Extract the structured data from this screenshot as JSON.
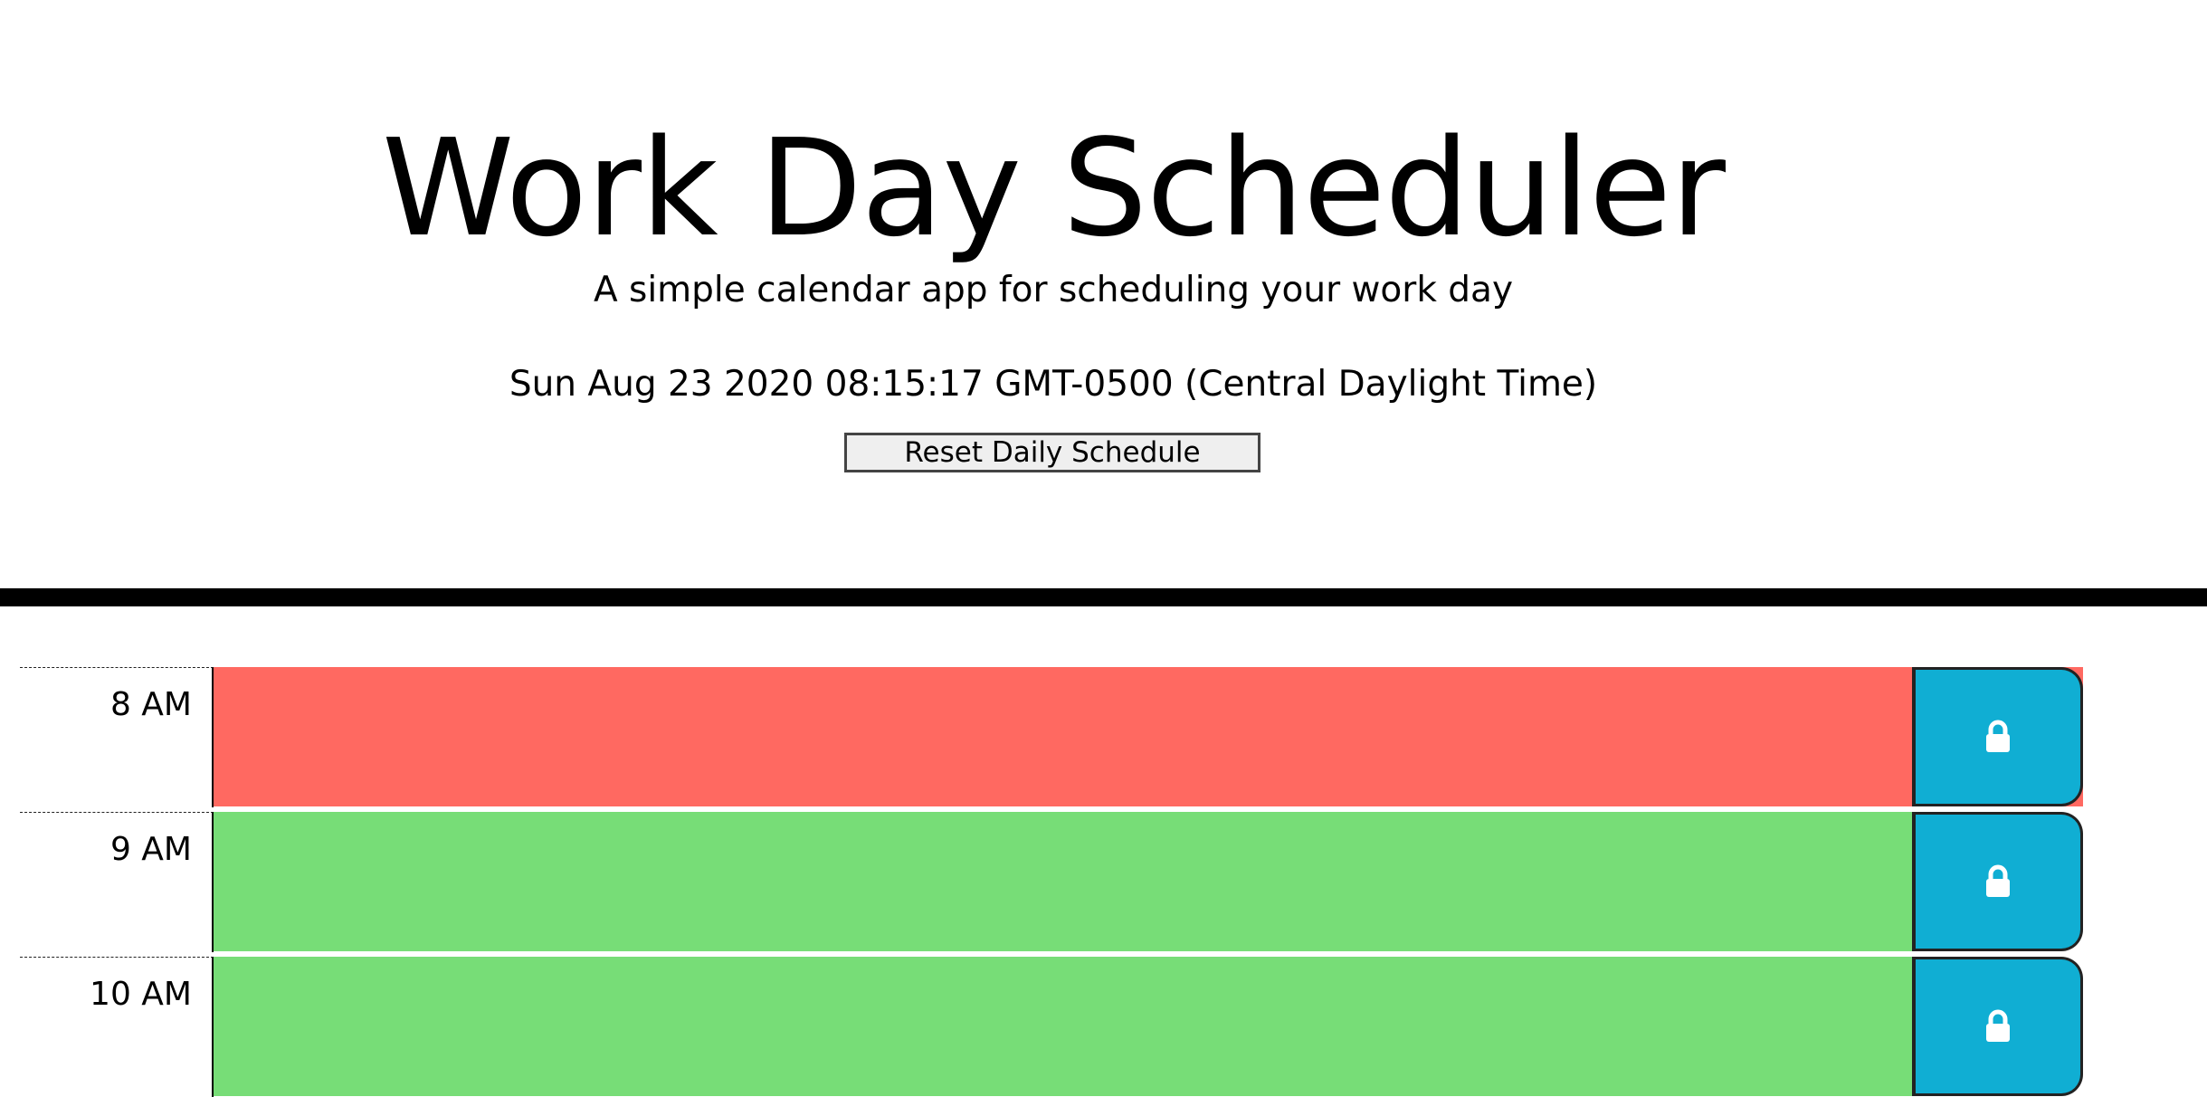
{
  "header": {
    "title": "Work Day Scheduler",
    "lead": "A simple calendar app for scheduling your work day",
    "current_day": "Sun Aug 23 2020 08:15:17 GMT-0500 (Central Daylight Time)",
    "reset_label": "Reset Daily Schedule"
  },
  "colors": {
    "past": "#ff6961",
    "future": "#77dd77",
    "save": "#10aed3"
  },
  "schedule": {
    "rows": [
      {
        "hour": "8 AM",
        "status": "past",
        "text": "",
        "save_icon": "lock-icon"
      },
      {
        "hour": "9 AM",
        "status": "future",
        "text": "",
        "save_icon": "lock-icon"
      },
      {
        "hour": "10 AM",
        "status": "future",
        "text": "",
        "save_icon": "lock-icon"
      }
    ]
  }
}
